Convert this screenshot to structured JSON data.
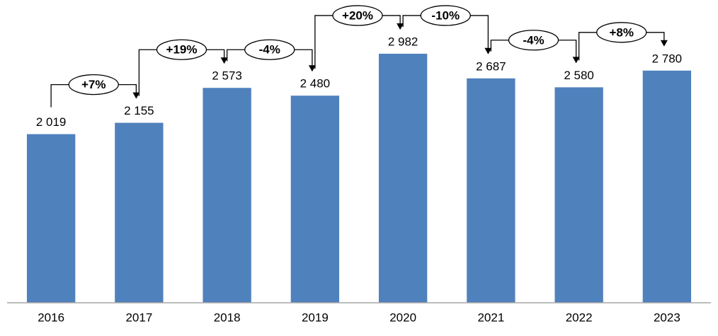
{
  "chart_data": {
    "type": "bar",
    "categories": [
      "2016",
      "2017",
      "2018",
      "2019",
      "2020",
      "2021",
      "2022",
      "2023"
    ],
    "values": [
      2019,
      2155,
      2573,
      2480,
      2982,
      2687,
      2580,
      2780
    ],
    "value_labels": [
      "2 019",
      "2 155",
      "2 573",
      "2 480",
      "2 982",
      "2 687",
      "2 580",
      "2 780"
    ],
    "annotations": [
      "+7%",
      "+19%",
      "-4%",
      "+20%",
      "-10%",
      "-4%",
      "+8%"
    ],
    "color": "#4f81bd",
    "ylim": [
      0,
      3600
    ]
  }
}
